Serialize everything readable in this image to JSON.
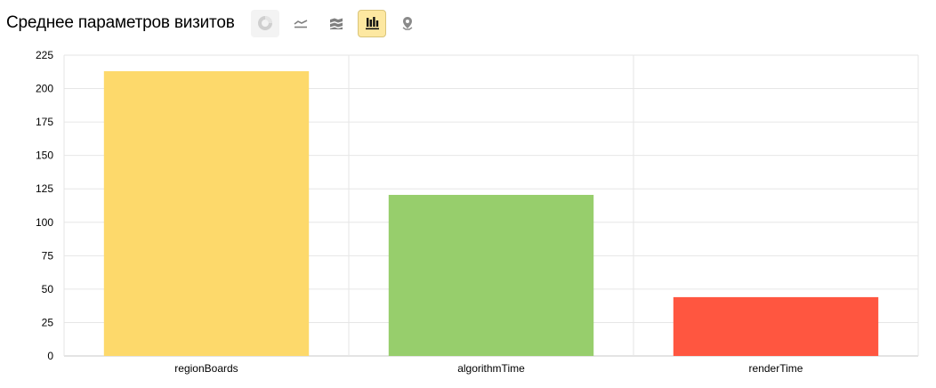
{
  "header": {
    "title": "Среднее параметров визитов"
  },
  "toolbar": {
    "buttons": [
      {
        "id": "pie",
        "icon": "pie-chart-icon",
        "state": "disabled"
      },
      {
        "id": "line",
        "icon": "line-chart-icon",
        "state": "normal"
      },
      {
        "id": "area",
        "icon": "stacked-area-chart-icon",
        "state": "normal"
      },
      {
        "id": "bar",
        "icon": "bar-chart-icon",
        "state": "active"
      },
      {
        "id": "map",
        "icon": "map-pin-icon",
        "state": "normal"
      }
    ]
  },
  "chart_data": {
    "type": "bar",
    "categories": [
      "regionBoards",
      "algorithmTime",
      "renderTime"
    ],
    "values": [
      213,
      120.5,
      44
    ],
    "colors": [
      "#fdd96b",
      "#97ce6c",
      "#ff5640"
    ],
    "title": "",
    "xlabel": "",
    "ylabel": "",
    "ylim": [
      0,
      225
    ],
    "yticks": [
      0,
      25,
      50,
      75,
      100,
      125,
      150,
      175,
      200,
      225
    ],
    "grid": true,
    "legend": "none"
  }
}
